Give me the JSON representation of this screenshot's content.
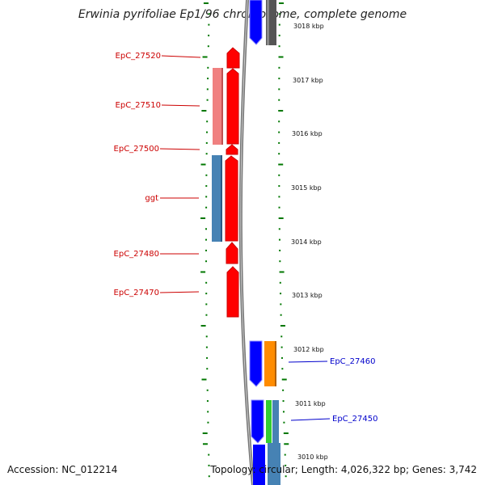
{
  "title": "Erwinia pyrifoliae Ep1/96 chromosome, complete genome",
  "footer": {
    "accession": "Accession: NC_012214",
    "summary": "Topology: circular; Length: 4,026,322 bp; Genes: 3,742"
  },
  "colors": {
    "forward_cds": "#ff0000",
    "forward_cds_light": "#f08080",
    "forward_steel": "#4682b4",
    "reverse_cds": "#0000ff",
    "reverse_orange": "#ff8c00",
    "reverse_green": "#32cd32",
    "reverse_gray": "#555555",
    "label_red": "#cc0000",
    "label_blue": "#0000cc",
    "tick_green": "#007700",
    "backbone": "#777777"
  },
  "kbp_labels": [
    "3018 kbp",
    "3017 kbp",
    "3016 kbp",
    "3015 kbp",
    "3014 kbp",
    "3013 kbp",
    "3012 kbp",
    "3011 kbp",
    "3010 kbp"
  ],
  "gene_labels_left": [
    "EpC_27520",
    "EpC_27510",
    "EpC_27500",
    "ggt",
    "EpC_27480",
    "EpC_27470"
  ],
  "gene_labels_right": [
    "EpC_27460",
    "EpC_27450"
  ]
}
